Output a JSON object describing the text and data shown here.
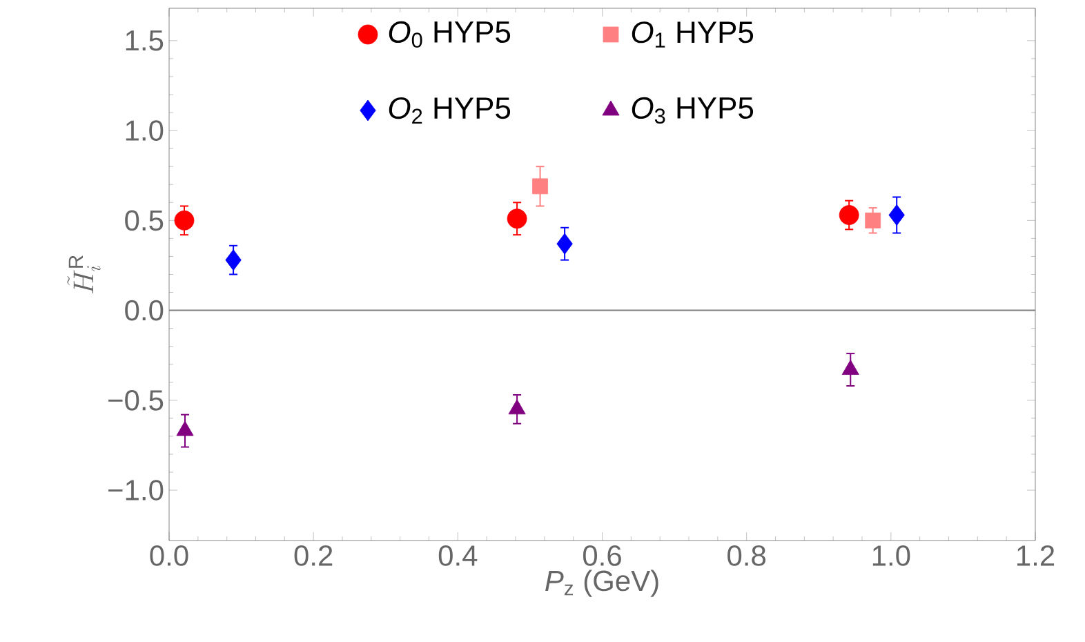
{
  "chart_data": {
    "type": "scatter",
    "xlabel": "*P*$_{z}$ (GeV)",
    "ylabel": "\\tilde{H}_{i}^{\\mathrm{R}}",
    "xlim": [
      0,
      1.2
    ],
    "ylim": [
      -1.28,
      1.68
    ],
    "xticks": [
      {
        "value": 0,
        "label": "0.0"
      },
      {
        "value": 0.2,
        "label": "0.2"
      },
      {
        "value": 0.4,
        "label": "0.4"
      },
      {
        "value": 0.6,
        "label": "0.6"
      },
      {
        "value": 0.8,
        "label": "0.8"
      },
      {
        "value": 1.0,
        "label": "1.0"
      },
      {
        "value": 1.2,
        "label": "1.2"
      }
    ],
    "yticks": [
      {
        "value": -1,
        "label": "−1.0"
      },
      {
        "value": -0.5,
        "label": "−0.5"
      },
      {
        "value": 0,
        "label": "0.0"
      },
      {
        "value": 0.5,
        "label": "0.5"
      },
      {
        "value": 1.0,
        "label": "1.0"
      },
      {
        "value": 1.5,
        "label": "1.5"
      }
    ],
    "ref_lines": [
      {
        "axis": "y",
        "value": 0,
        "color": "#808080"
      }
    ],
    "legend": "top",
    "series": [
      {
        "name": "*O*$_{0}$ HYP5",
        "color": "#ff0000",
        "marker": "circle",
        "x": [
          0.021,
          0.482,
          0.942
        ],
        "values": [
          0.5,
          0.51,
          0.53
        ],
        "errors": [
          0.08,
          0.09,
          0.08
        ]
      },
      {
        "name": "*O*$_{1}$ HYP5",
        "color": "#ff8080",
        "marker": "square",
        "x": [
          0.514,
          0.975
        ],
        "values": [
          0.69,
          0.5
        ],
        "errors": [
          0.11,
          0.07
        ]
      },
      {
        "name": "*O*$_{2}$ HYP5",
        "color": "#0000ff",
        "marker": "diamond",
        "x": [
          0.089,
          0.548,
          1.008
        ],
        "values": [
          0.28,
          0.37,
          0.53
        ],
        "errors": [
          0.08,
          0.09,
          0.1
        ]
      },
      {
        "name": "*O*$_{3}$ HYP5",
        "color": "#800080",
        "marker": "triangle",
        "x": [
          0.022,
          0.482,
          0.944
        ],
        "values": [
          -0.67,
          -0.55,
          -0.33
        ],
        "errors": [
          0.09,
          0.08,
          0.09
        ]
      }
    ]
  }
}
